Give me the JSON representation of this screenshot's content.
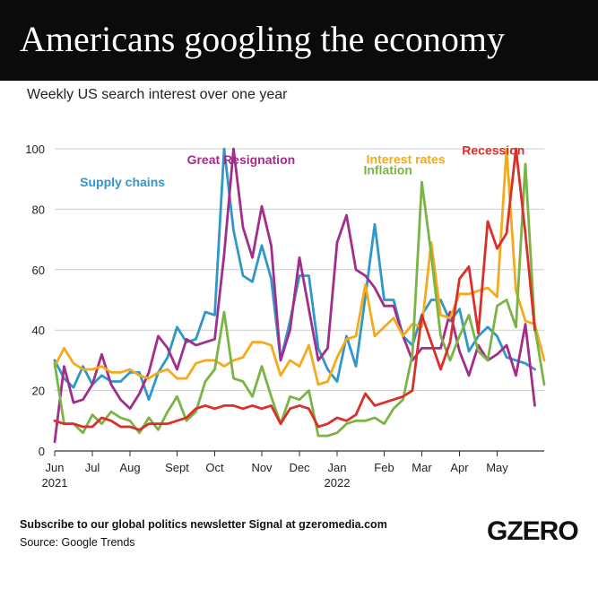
{
  "header": {
    "title": "Americans googling the economy"
  },
  "subtitle": "Weekly US search interest over one year",
  "footer": {
    "newsletter": "Subscribe to our global politics newsletter Signal at gzeromedia.com",
    "source": "Source: Google Trends",
    "logo": "GZERO"
  },
  "chart_data": {
    "type": "line",
    "title": "Americans googling the economy",
    "subtitle": "Weekly US search interest over one year",
    "ylim": [
      0,
      100
    ],
    "yticks": [
      0,
      20,
      40,
      60,
      80,
      100
    ],
    "xlim": [
      0,
      52
    ],
    "x_ticks": [
      {
        "label": "Jun",
        "year": "2021",
        "x": 0
      },
      {
        "label": "Jul",
        "x": 4
      },
      {
        "label": "Aug",
        "x": 8
      },
      {
        "label": "Sept",
        "x": 13
      },
      {
        "label": "Oct",
        "x": 17
      },
      {
        "label": "Nov",
        "x": 22
      },
      {
        "label": "Dec",
        "x": 26
      },
      {
        "label": "Jan",
        "year": "2022",
        "x": 30
      },
      {
        "label": "Feb",
        "x": 35
      },
      {
        "label": "Mar",
        "x": 39
      },
      {
        "label": "Apr",
        "x": 43
      },
      {
        "label": "May",
        "x": 47
      }
    ],
    "grid": true,
    "series": [
      {
        "name": "Supply chains",
        "color": "#2f97c9",
        "label_x": 7.2,
        "label_y": 89,
        "values": [
          30,
          24,
          21,
          28,
          22,
          25,
          23,
          23,
          26,
          26,
          17,
          26,
          31,
          41,
          36,
          37,
          46,
          45,
          100,
          73,
          58,
          56,
          68,
          57,
          30,
          43,
          58,
          58,
          34,
          27,
          23,
          38,
          28,
          51,
          75,
          50,
          50,
          38,
          35,
          45,
          50,
          50,
          43,
          47,
          33,
          38,
          41,
          38,
          31,
          30,
          29,
          27
        ]
      },
      {
        "name": "Great Resignation",
        "color": "#a12e8b",
        "label_x": 19.8,
        "label_y": 96.5,
        "values": [
          3,
          28,
          16,
          17,
          22,
          32,
          22,
          17,
          14,
          19,
          26,
          38,
          34,
          27,
          37,
          35,
          36,
          37,
          65,
          100,
          74,
          64,
          81,
          68,
          30,
          40,
          64,
          47,
          30,
          34,
          69,
          78,
          60,
          58,
          54,
          48,
          48,
          38,
          30,
          34,
          34,
          34,
          46,
          33,
          25,
          35,
          30,
          32,
          35,
          25,
          42,
          15
        ]
      },
      {
        "name": "Interest rates",
        "color": "#f5aa1d",
        "label_x": 37.3,
        "label_y": 96.6,
        "values": [
          28,
          34,
          29,
          27,
          27,
          28,
          26,
          26,
          27,
          25,
          24,
          26,
          27,
          24,
          24,
          29,
          30,
          30,
          28,
          30,
          31,
          36,
          36,
          35,
          25,
          30,
          28,
          35,
          22,
          23,
          31,
          37,
          38,
          55,
          38,
          41,
          44,
          38,
          42,
          41,
          69,
          45,
          44,
          52,
          52,
          53,
          54,
          51,
          100,
          53,
          43,
          42,
          30
        ]
      },
      {
        "name": "Inflation",
        "color": "#7ab445",
        "label_x": 35.4,
        "label_y": 93.1,
        "values": [
          29,
          9,
          9,
          6,
          12,
          9,
          13,
          11,
          10,
          6,
          11,
          7,
          13,
          18,
          10,
          13,
          23,
          27,
          46,
          24,
          23,
          18,
          28,
          18,
          9,
          18,
          17,
          20,
          5,
          5,
          6,
          9,
          10,
          10,
          11,
          9,
          14,
          17,
          32,
          89,
          65,
          38,
          30,
          38,
          45,
          33,
          30,
          48,
          50,
          41,
          95,
          41,
          22
        ]
      },
      {
        "name": "Recession",
        "color": "#d9302a",
        "label_x": 46.6,
        "label_y": 99.5,
        "values": [
          10,
          9,
          9,
          8,
          8,
          11,
          10,
          8,
          8,
          7,
          9,
          9,
          9,
          10,
          11,
          14,
          15,
          14,
          15,
          15,
          14,
          15,
          14,
          15,
          9,
          14,
          15,
          14,
          8,
          9,
          11,
          10,
          12,
          19,
          15,
          16,
          17,
          18,
          20,
          45,
          36,
          27,
          36,
          57,
          61,
          39,
          76,
          67,
          72,
          100,
          72,
          40
        ]
      }
    ]
  }
}
